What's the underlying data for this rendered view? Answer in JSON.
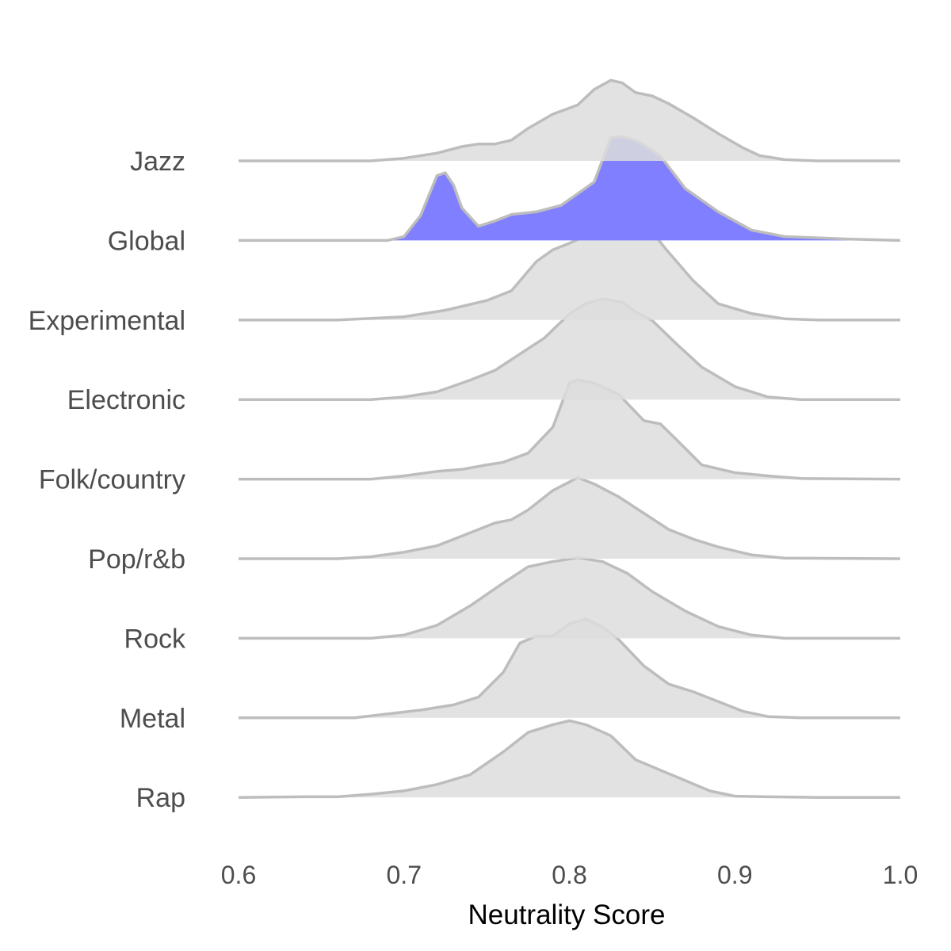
{
  "chart_data": {
    "type": "area",
    "subtype": "ridgeline-density",
    "title": "",
    "xlabel": "Neutrality Score",
    "ylabel": "",
    "xlim": [
      0.6,
      1.0
    ],
    "x_ticks": [
      "0.6",
      "0.7",
      "0.8",
      "0.9",
      "1.0"
    ],
    "grid": false,
    "legend": "none",
    "colors": {
      "default_fill": "#dddddd",
      "highlight_fill": "#7f7fff",
      "line": "#bdbdbd"
    },
    "categories": [
      "Jazz",
      "Global",
      "Experimental",
      "Electronic",
      "Folk/country",
      "Pop/r&b",
      "Rock",
      "Metal",
      "Rap"
    ],
    "series": [
      {
        "name": "Jazz",
        "highlight": false,
        "density": [
          [
            0.6,
            0
          ],
          [
            0.68,
            0
          ],
          [
            0.7,
            0.04
          ],
          [
            0.72,
            0.12
          ],
          [
            0.735,
            0.22
          ],
          [
            0.745,
            0.26
          ],
          [
            0.755,
            0.26
          ],
          [
            0.765,
            0.32
          ],
          [
            0.775,
            0.5
          ],
          [
            0.79,
            0.72
          ],
          [
            0.805,
            0.86
          ],
          [
            0.815,
            1.1
          ],
          [
            0.825,
            1.24
          ],
          [
            0.832,
            1.2
          ],
          [
            0.84,
            1.05
          ],
          [
            0.85,
            1.0
          ],
          [
            0.86,
            0.88
          ],
          [
            0.875,
            0.66
          ],
          [
            0.89,
            0.42
          ],
          [
            0.905,
            0.2
          ],
          [
            0.915,
            0.08
          ],
          [
            0.93,
            0.02
          ],
          [
            0.95,
            0
          ],
          [
            1.0,
            0
          ]
        ]
      },
      {
        "name": "Global",
        "highlight": true,
        "density": [
          [
            0.6,
            0
          ],
          [
            0.69,
            0
          ],
          [
            0.7,
            0.06
          ],
          [
            0.71,
            0.38
          ],
          [
            0.72,
            1.0
          ],
          [
            0.725,
            1.04
          ],
          [
            0.73,
            0.85
          ],
          [
            0.735,
            0.5
          ],
          [
            0.745,
            0.22
          ],
          [
            0.755,
            0.3
          ],
          [
            0.765,
            0.4
          ],
          [
            0.78,
            0.44
          ],
          [
            0.795,
            0.54
          ],
          [
            0.805,
            0.72
          ],
          [
            0.815,
            0.9
          ],
          [
            0.825,
            1.58
          ],
          [
            0.832,
            1.6
          ],
          [
            0.842,
            1.52
          ],
          [
            0.855,
            1.3
          ],
          [
            0.87,
            0.8
          ],
          [
            0.89,
            0.44
          ],
          [
            0.91,
            0.16
          ],
          [
            0.93,
            0.06
          ],
          [
            0.95,
            0.04
          ],
          [
            0.97,
            0.02
          ],
          [
            1.0,
            0
          ]
        ]
      },
      {
        "name": "Experimental",
        "highlight": false,
        "density": [
          [
            0.6,
            0
          ],
          [
            0.66,
            0
          ],
          [
            0.7,
            0.05
          ],
          [
            0.725,
            0.15
          ],
          [
            0.75,
            0.3
          ],
          [
            0.765,
            0.45
          ],
          [
            0.78,
            0.9
          ],
          [
            0.79,
            1.08
          ],
          [
            0.8,
            1.18
          ],
          [
            0.815,
            1.36
          ],
          [
            0.828,
            1.65
          ],
          [
            0.835,
            1.6
          ],
          [
            0.845,
            1.52
          ],
          [
            0.858,
            1.1
          ],
          [
            0.875,
            0.6
          ],
          [
            0.89,
            0.25
          ],
          [
            0.91,
            0.1
          ],
          [
            0.93,
            0.02
          ],
          [
            0.95,
            0
          ],
          [
            1.0,
            0
          ]
        ]
      },
      {
        "name": "Electronic",
        "highlight": false,
        "density": [
          [
            0.6,
            0
          ],
          [
            0.68,
            0
          ],
          [
            0.7,
            0.04
          ],
          [
            0.72,
            0.12
          ],
          [
            0.74,
            0.3
          ],
          [
            0.755,
            0.45
          ],
          [
            0.77,
            0.7
          ],
          [
            0.785,
            0.95
          ],
          [
            0.8,
            1.32
          ],
          [
            0.81,
            1.48
          ],
          [
            0.82,
            1.55
          ],
          [
            0.832,
            1.5
          ],
          [
            0.84,
            1.35
          ],
          [
            0.85,
            1.22
          ],
          [
            0.865,
            0.85
          ],
          [
            0.88,
            0.5
          ],
          [
            0.9,
            0.2
          ],
          [
            0.92,
            0.04
          ],
          [
            0.94,
            0
          ],
          [
            1.0,
            0
          ]
        ]
      },
      {
        "name": "Folk/country",
        "highlight": false,
        "density": [
          [
            0.6,
            0
          ],
          [
            0.68,
            0
          ],
          [
            0.7,
            0.05
          ],
          [
            0.72,
            0.12
          ],
          [
            0.735,
            0.15
          ],
          [
            0.75,
            0.22
          ],
          [
            0.76,
            0.26
          ],
          [
            0.775,
            0.4
          ],
          [
            0.79,
            0.8
          ],
          [
            0.8,
            1.48
          ],
          [
            0.805,
            1.53
          ],
          [
            0.815,
            1.48
          ],
          [
            0.83,
            1.3
          ],
          [
            0.845,
            0.9
          ],
          [
            0.855,
            0.85
          ],
          [
            0.865,
            0.6
          ],
          [
            0.88,
            0.22
          ],
          [
            0.9,
            0.1
          ],
          [
            0.92,
            0.05
          ],
          [
            0.94,
            0.01
          ],
          [
            1.0,
            0
          ]
        ]
      },
      {
        "name": "Pop/r&b",
        "highlight": false,
        "density": [
          [
            0.6,
            0
          ],
          [
            0.66,
            0
          ],
          [
            0.68,
            0.03
          ],
          [
            0.7,
            0.1
          ],
          [
            0.72,
            0.2
          ],
          [
            0.74,
            0.4
          ],
          [
            0.755,
            0.55
          ],
          [
            0.765,
            0.6
          ],
          [
            0.775,
            0.75
          ],
          [
            0.79,
            1.05
          ],
          [
            0.8,
            1.18
          ],
          [
            0.805,
            1.25
          ],
          [
            0.815,
            1.15
          ],
          [
            0.83,
            0.95
          ],
          [
            0.845,
            0.7
          ],
          [
            0.86,
            0.45
          ],
          [
            0.875,
            0.3
          ],
          [
            0.89,
            0.18
          ],
          [
            0.91,
            0.06
          ],
          [
            0.93,
            0.01
          ],
          [
            1.0,
            0
          ]
        ]
      },
      {
        "name": "Rock",
        "highlight": false,
        "density": [
          [
            0.6,
            0
          ],
          [
            0.68,
            0
          ],
          [
            0.7,
            0.05
          ],
          [
            0.72,
            0.2
          ],
          [
            0.74,
            0.5
          ],
          [
            0.76,
            0.85
          ],
          [
            0.775,
            1.1
          ],
          [
            0.79,
            1.18
          ],
          [
            0.805,
            1.24
          ],
          [
            0.82,
            1.18
          ],
          [
            0.835,
            1.0
          ],
          [
            0.85,
            0.72
          ],
          [
            0.87,
            0.42
          ],
          [
            0.89,
            0.18
          ],
          [
            0.91,
            0.05
          ],
          [
            0.93,
            0
          ],
          [
            1.0,
            0
          ]
        ]
      },
      {
        "name": "Metal",
        "highlight": false,
        "density": [
          [
            0.6,
            0
          ],
          [
            0.67,
            0
          ],
          [
            0.69,
            0.06
          ],
          [
            0.71,
            0.12
          ],
          [
            0.73,
            0.2
          ],
          [
            0.745,
            0.32
          ],
          [
            0.76,
            0.7
          ],
          [
            0.77,
            1.15
          ],
          [
            0.78,
            1.26
          ],
          [
            0.79,
            1.26
          ],
          [
            0.8,
            1.45
          ],
          [
            0.81,
            1.52
          ],
          [
            0.82,
            1.4
          ],
          [
            0.83,
            1.2
          ],
          [
            0.845,
            0.8
          ],
          [
            0.86,
            0.52
          ],
          [
            0.875,
            0.4
          ],
          [
            0.89,
            0.25
          ],
          [
            0.905,
            0.1
          ],
          [
            0.92,
            0.02
          ],
          [
            0.94,
            0
          ],
          [
            1.0,
            0
          ]
        ]
      },
      {
        "name": "Rap",
        "highlight": false,
        "density": [
          [
            0.6,
            0
          ],
          [
            0.64,
            0.01
          ],
          [
            0.66,
            0.01
          ],
          [
            0.68,
            0.05
          ],
          [
            0.7,
            0.1
          ],
          [
            0.72,
            0.2
          ],
          [
            0.74,
            0.35
          ],
          [
            0.76,
            0.7
          ],
          [
            0.775,
            1.0
          ],
          [
            0.79,
            1.12
          ],
          [
            0.8,
            1.18
          ],
          [
            0.81,
            1.12
          ],
          [
            0.825,
            0.95
          ],
          [
            0.84,
            0.58
          ],
          [
            0.855,
            0.42
          ],
          [
            0.87,
            0.26
          ],
          [
            0.885,
            0.1
          ],
          [
            0.9,
            0.02
          ],
          [
            0.92,
            0.01
          ],
          [
            0.95,
            0
          ],
          [
            1.0,
            0
          ]
        ]
      }
    ]
  }
}
